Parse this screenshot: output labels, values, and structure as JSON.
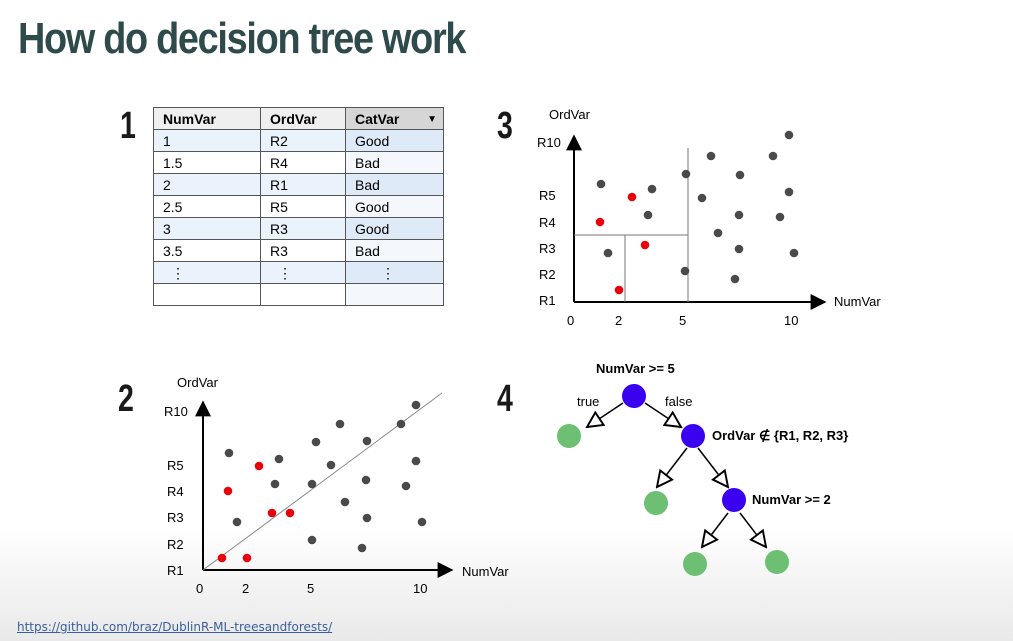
{
  "title": "How do decision tree work",
  "panel_numbers": [
    "1",
    "2",
    "3",
    "4"
  ],
  "table": {
    "headers": [
      "NumVar",
      "OrdVar",
      "CatVar"
    ],
    "dropdown_icon": "triangle-down",
    "rows": [
      [
        "1",
        "R2",
        "Good"
      ],
      [
        "1.5",
        "R4",
        "Bad"
      ],
      [
        "2",
        "R1",
        "Bad"
      ],
      [
        "2.5",
        "R5",
        "Good"
      ],
      [
        "3",
        "R3",
        "Good"
      ],
      [
        "3.5",
        "R3",
        "Bad"
      ]
    ],
    "ellipsis": "⋮"
  },
  "scatter_common": {
    "x_axis_label": "NumVar",
    "y_axis_label": "OrdVar",
    "x_ticks": [
      "0",
      "2",
      "5",
      "10"
    ],
    "y_ticks": [
      "R1",
      "R2",
      "R3",
      "R4",
      "R5",
      "R10"
    ],
    "colors": {
      "dark": "#4a4a4a",
      "red": "#e8000b",
      "axis": "#000000",
      "split": "#777777"
    }
  },
  "tree": {
    "root_label": "NumVar >= 5",
    "true_label": "true",
    "false_label": "false",
    "node2_label": "OrdVar ∉ {R1, R2, R3}",
    "node3_label": "NumVar >= 2",
    "colors": {
      "split": "#3a00f0",
      "leaf": "#6dbf73"
    }
  },
  "footer_link": "https://github.com/braz/DublinR-ML-treesandforests/"
}
